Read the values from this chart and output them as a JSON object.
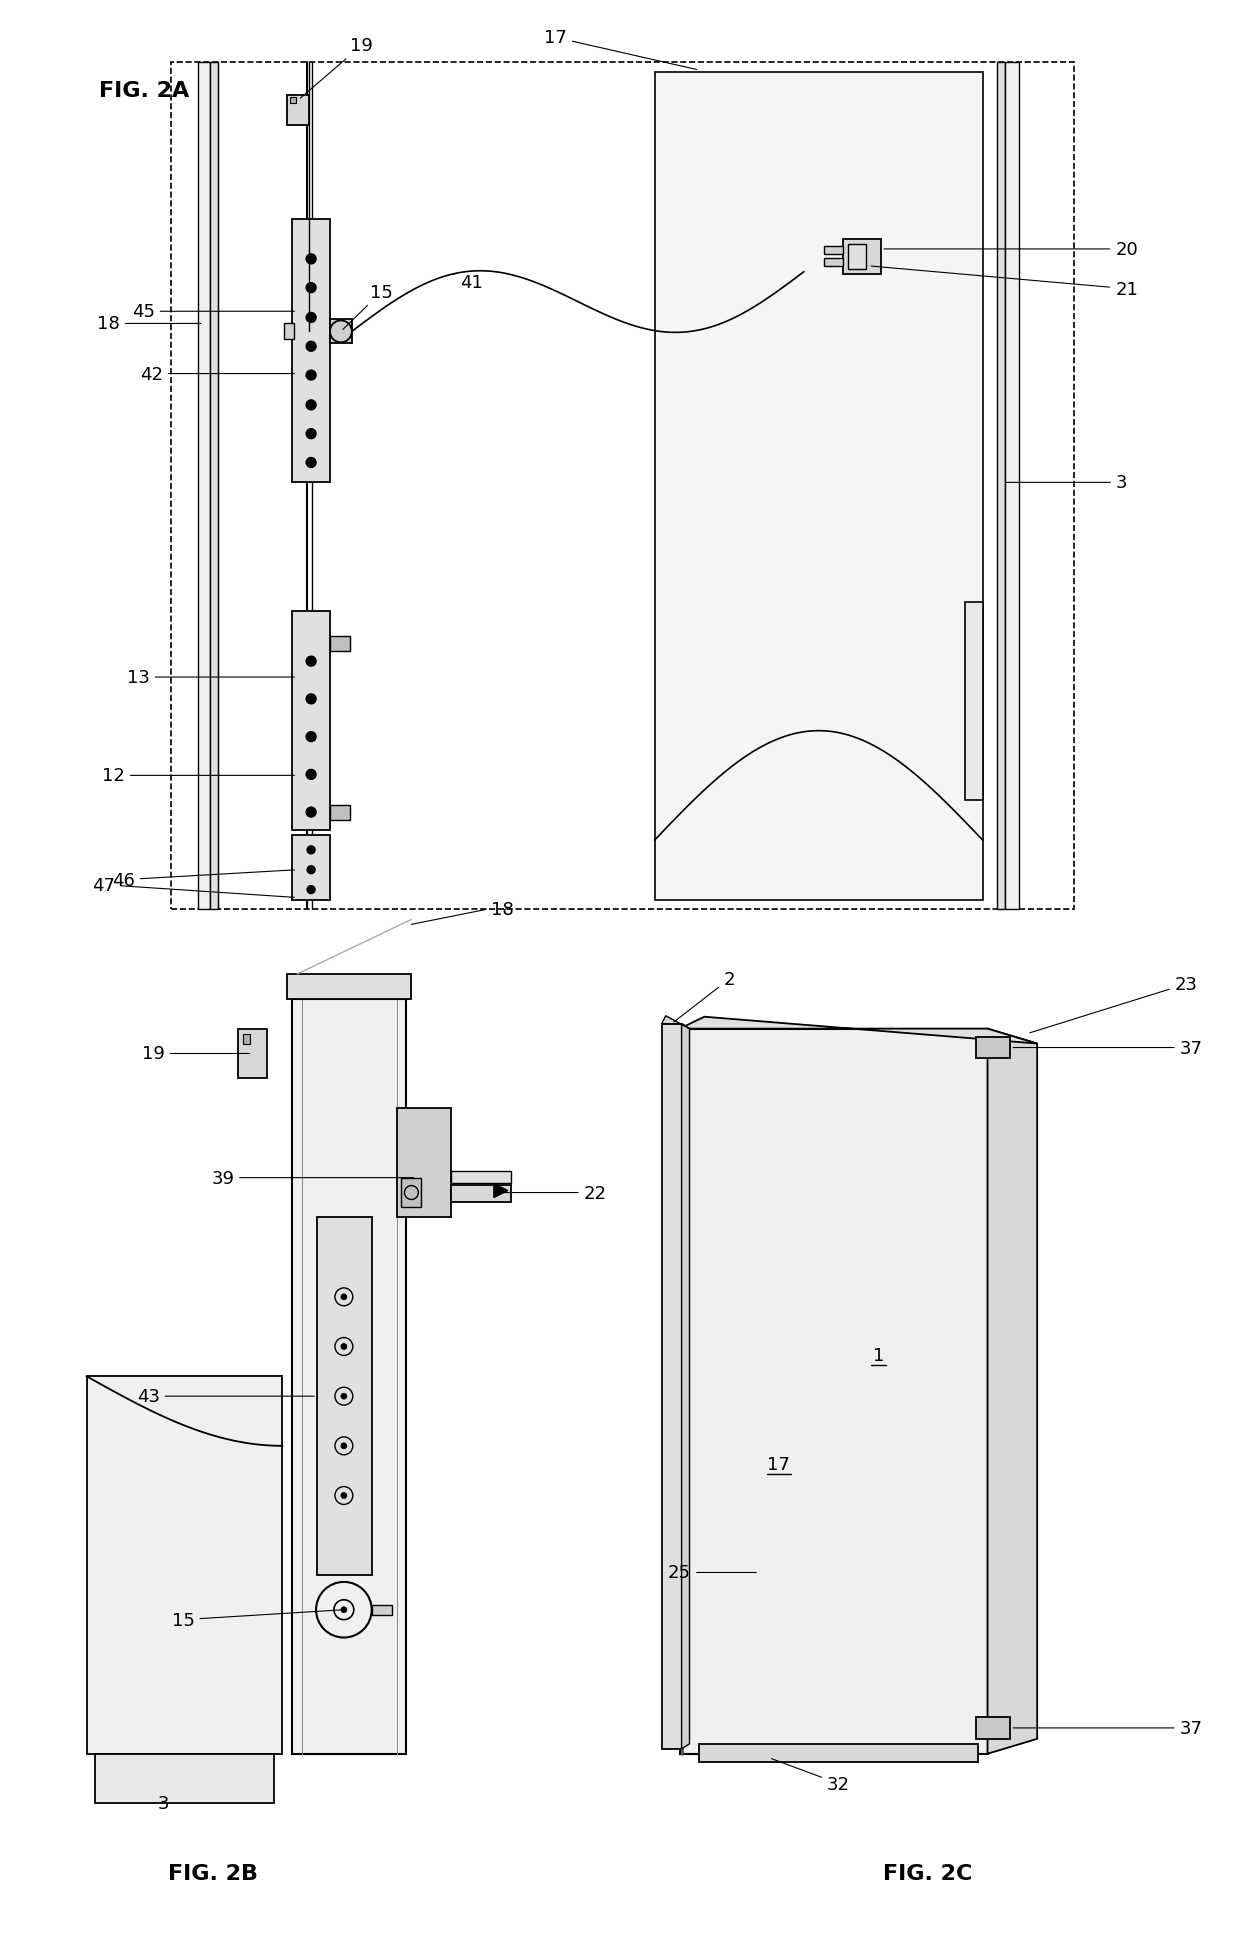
{
  "bg_color": "#ffffff",
  "line_color": "#000000",
  "fig_width": 12.4,
  "fig_height": 19.56,
  "dpi": 100,
  "figlabel_fontsize": 16,
  "annotation_fontsize": 13,
  "fig2a_label": "FIG. 2A",
  "fig2b_label": "FIG. 2B",
  "fig2c_label": "FIG. 2C"
}
